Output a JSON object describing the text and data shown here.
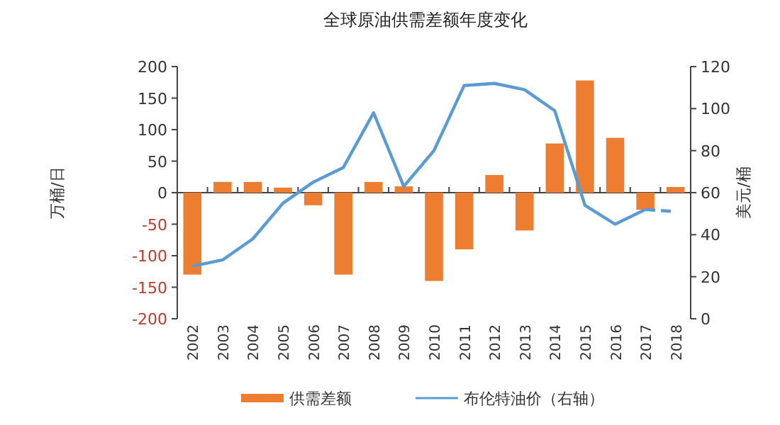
{
  "chart_data": {
    "type": "bar",
    "title": "全球原油供需差额年度变化",
    "categories": [
      "2002",
      "2003",
      "2004",
      "2005",
      "2006",
      "2007",
      "2008",
      "2009",
      "2010",
      "2011",
      "2012",
      "2013",
      "2014",
      "2015",
      "2016",
      "2017",
      "2018"
    ],
    "ylabel": "万桶/日",
    "y2label": "美元/桶",
    "ylim": [
      -200,
      200
    ],
    "yticks": [
      -200,
      -150,
      -100,
      -50,
      0,
      50,
      100,
      150,
      200
    ],
    "y2lim": [
      0,
      120
    ],
    "y2ticks": [
      0,
      20,
      40,
      60,
      80,
      100,
      120
    ],
    "legend": "bottom",
    "series": [
      {
        "name": "供需差额",
        "color": "#ed7d31",
        "values": [
          -130,
          17,
          17,
          8,
          -20,
          -130,
          17,
          10,
          -140,
          -90,
          28,
          -60,
          78,
          178,
          87,
          -27,
          9
        ]
      },
      {
        "name": "布伦特油价（右轴）",
        "type": "line",
        "axis": "y2",
        "color": "#5b9bd5",
        "values": [
          25,
          28,
          38,
          55,
          65,
          72,
          98,
          63,
          80,
          111,
          112,
          109,
          99,
          54,
          45,
          52,
          null
        ]
      },
      {
        "type": "line",
        "axis": "y2",
        "color": "#5b9bd5",
        "line_style": "dashed",
        "values": [
          null,
          null,
          null,
          null,
          null,
          null,
          null,
          null,
          null,
          null,
          null,
          null,
          null,
          null,
          null,
          52,
          51
        ]
      }
    ]
  }
}
